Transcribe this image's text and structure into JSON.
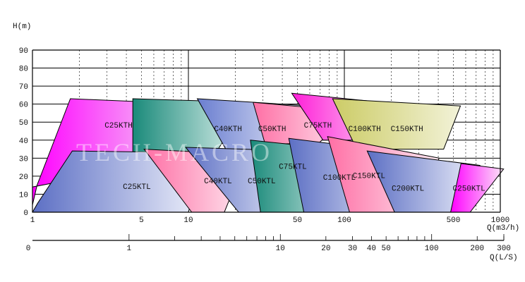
{
  "chart_data": {
    "type": "area",
    "ylabel": "H(m)",
    "xlabel": "Q(m3/h)",
    "x2label": "Q(L/S)",
    "xscale": "log",
    "xlim": [
      1,
      1000
    ],
    "ylim": [
      0,
      90
    ],
    "yticks": [
      0,
      10,
      20,
      30,
      40,
      50,
      60,
      70,
      80,
      90
    ],
    "xticks": [
      1,
      5,
      10,
      50,
      100,
      500,
      1000
    ],
    "x2ticks": [
      0,
      1,
      10,
      20,
      30,
      40,
      50,
      100,
      200,
      300
    ],
    "grid": true,
    "watermark": "TECH-MACRO",
    "series": [
      {
        "name": "C25KTH",
        "color": "#ff00ff",
        "fill_to": "#f3e6f3",
        "polygon": [
          [
            1,
            4
          ],
          [
            1.07,
            15
          ],
          [
            1.75,
            63
          ],
          [
            11.5,
            60
          ],
          [
            7,
            28
          ],
          [
            1,
            14
          ]
        ],
        "label_at": [
          2.9,
          47
        ]
      },
      {
        "name": "C40KTH",
        "color": "#1a8a7a",
        "fill_to": "#e6f5f2",
        "polygon": [
          [
            4.4,
            63
          ],
          [
            24,
            61
          ],
          [
            13.8,
            28
          ],
          [
            4.4,
            28
          ]
        ],
        "label_at": [
          14.6,
          45
        ]
      },
      {
        "name": "C50KTH",
        "color": "#6a7ed0",
        "fill_to": "#eef0fa",
        "polygon": [
          [
            11.4,
            63
          ],
          [
            60,
            59
          ],
          [
            38,
            29
          ],
          [
            19,
            29
          ]
        ],
        "label_at": [
          28,
          45
        ]
      },
      {
        "name": "C75KTH",
        "color": "#ff6fa5",
        "fill_to": "#fde9f1",
        "polygon": [
          [
            26,
            61
          ],
          [
            111,
            56
          ],
          [
            68,
            38
          ],
          [
            31,
            38
          ]
        ],
        "label_at": [
          55,
          47
        ]
      },
      {
        "name": "C100KTH",
        "color": "#ff1fd8",
        "fill_to": "#fbe6f7",
        "polygon": [
          [
            46,
            66
          ],
          [
            230,
            60
          ],
          [
            150,
            40
          ],
          [
            73,
            40
          ]
        ],
        "label_at": [
          106,
          45
        ]
      },
      {
        "name": "C150KTH",
        "color": "#cccc66",
        "fill_to": "#f2f2d8",
        "polygon": [
          [
            84,
            63
          ],
          [
            555,
            59
          ],
          [
            433,
            35
          ],
          [
            120,
            35
          ]
        ],
        "label_at": [
          198,
          45
        ]
      },
      {
        "name": "C25KTL",
        "color": "#5c6fc4",
        "fill_to": "#f0f2fb",
        "polygon": [
          [
            1,
            0
          ],
          [
            1.08,
            5
          ],
          [
            1.8,
            34
          ],
          [
            12.7,
            33
          ],
          [
            10,
            0
          ]
        ],
        "label_at": [
          3.8,
          13
        ]
      },
      {
        "name": "C40KTL",
        "color": "#ff6fa5",
        "fill_to": "#fde9f1",
        "polygon": [
          [
            5.2,
            35
          ],
          [
            24,
            32
          ],
          [
            17,
            0
          ],
          [
            10.5,
            0
          ]
        ],
        "label_at": [
          12.6,
          16
        ]
      },
      {
        "name": "C50KTL",
        "color": "#5c6fc4",
        "fill_to": "#eef0fa",
        "polygon": [
          [
            9.6,
            36
          ],
          [
            52,
            34
          ],
          [
            36,
            0
          ],
          [
            21,
            0
          ]
        ],
        "label_at": [
          24,
          16
        ]
      },
      {
        "name": "C75KTL",
        "color": "#1a8a7a",
        "fill_to": "#e6f5f2",
        "polygon": [
          [
            25,
            40
          ],
          [
            115,
            34
          ],
          [
            72,
            0
          ],
          [
            29,
            0
          ]
        ],
        "label_at": [
          38,
          24
        ]
      },
      {
        "name": "C100KTL",
        "color": "#5c6fc4",
        "fill_to": "#eef0fa",
        "polygon": [
          [
            44,
            41
          ],
          [
            245,
            33
          ],
          [
            170,
            0
          ],
          [
            55,
            0
          ]
        ],
        "label_at": [
          73,
          18
        ]
      },
      {
        "name": "C150KTL",
        "color": "#ff6fa5",
        "fill_to": "#fde9f1",
        "polygon": [
          [
            78,
            42
          ],
          [
            405,
            30
          ],
          [
            300,
            0
          ],
          [
            108,
            0
          ]
        ],
        "label_at": [
          113,
          19
        ]
      },
      {
        "name": "C200KTL",
        "color": "#5c6fc4",
        "fill_to": "#eef0fa",
        "polygon": [
          [
            140,
            34
          ],
          [
            740,
            26
          ],
          [
            560,
            0
          ],
          [
            210,
            0
          ]
        ],
        "label_at": [
          201,
          12
        ]
      },
      {
        "name": "C250KTL",
        "color": "#ff00ff",
        "fill_to": "#fbe6f7",
        "polygon": [
          [
            560,
            27
          ],
          [
            1050,
            24
          ],
          [
            640,
            0
          ],
          [
            480,
            0
          ]
        ],
        "label_at": [
          495,
          12
        ]
      }
    ]
  }
}
